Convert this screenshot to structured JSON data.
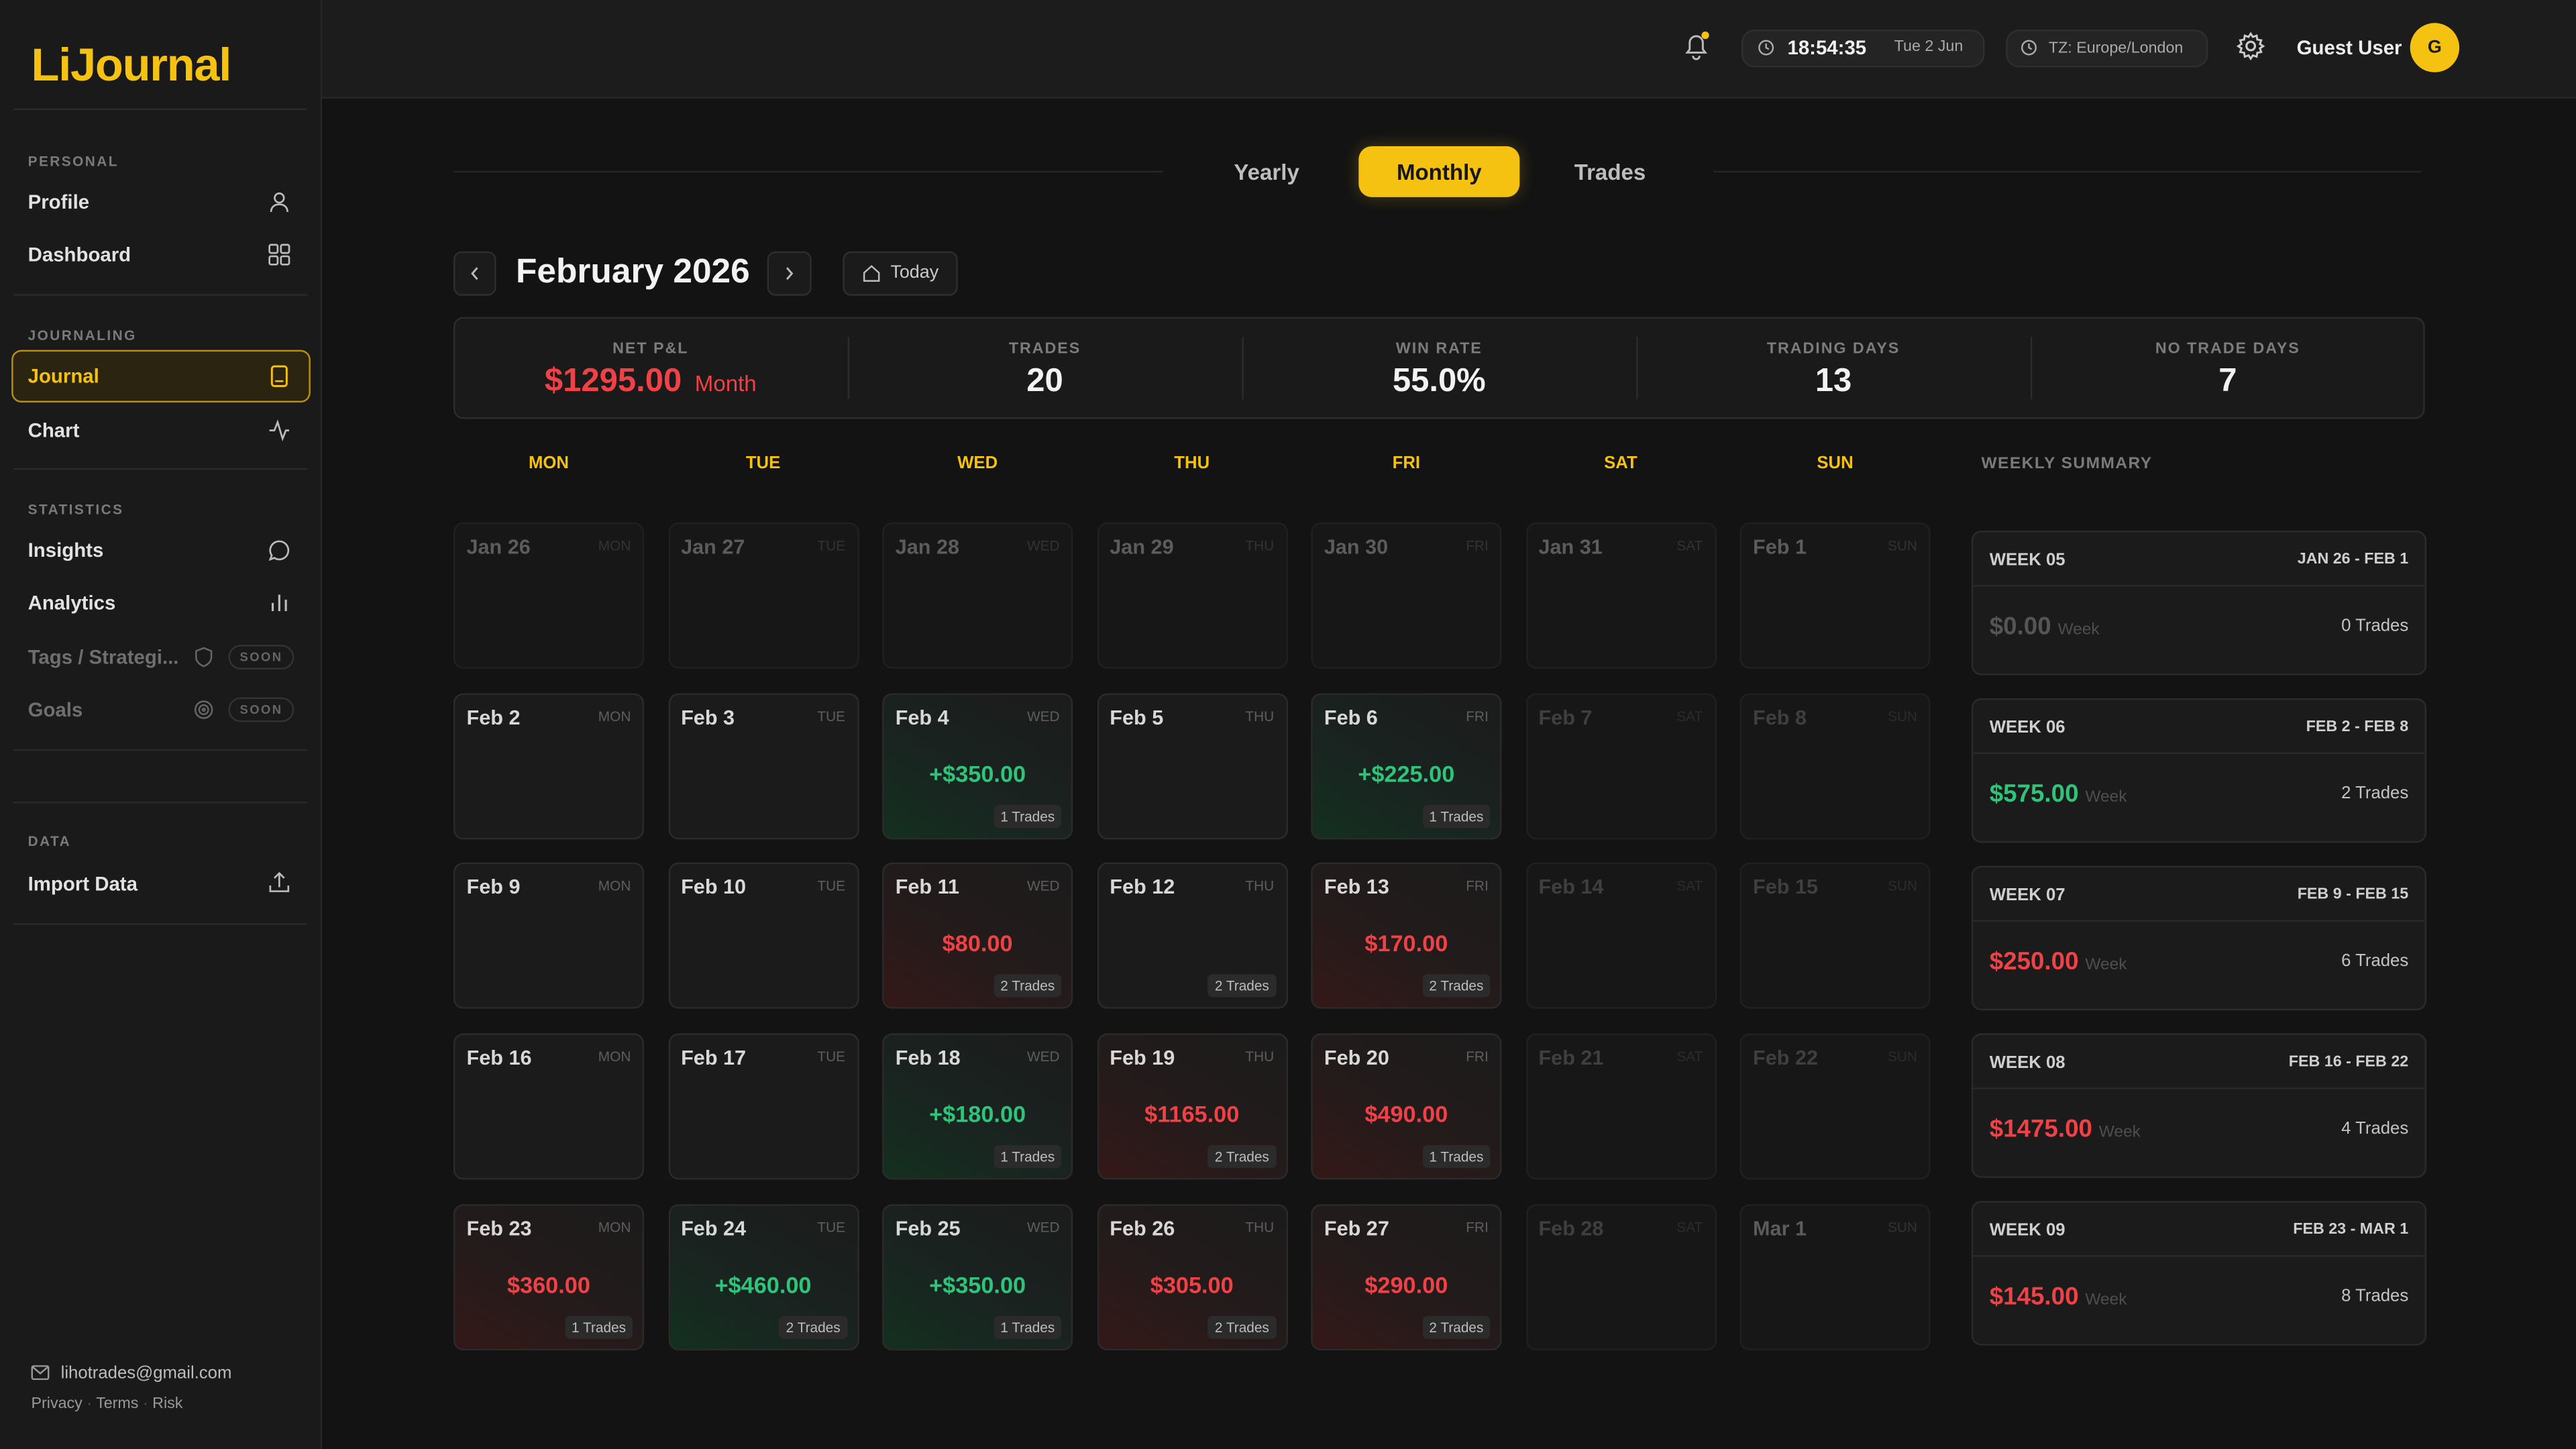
{
  "brand": "LiJournal",
  "sidebar": {
    "sections": [
      {
        "title": "PERSONAL",
        "items": [
          "Profile",
          "Dashboard"
        ]
      },
      {
        "title": "JOURNALING",
        "items": [
          "Journal",
          "Chart"
        ]
      },
      {
        "title": "STATISTICS",
        "items": [
          "Insights",
          "Analytics",
          "Tags / Strategi...",
          "Goals"
        ]
      },
      {
        "title": "DATA",
        "items": [
          "Import Data"
        ]
      }
    ],
    "soon": "SOON",
    "email": "lihotrades@gmail.com",
    "links": [
      "Privacy",
      "Terms",
      "Risk"
    ],
    "link_sep": "·"
  },
  "header": {
    "time": "18:54:35",
    "date": "Tue 2 Jun",
    "timezone": "TZ: Europe/London",
    "user": "Guest User",
    "avatar": "G"
  },
  "tabs": [
    "Yearly",
    "Monthly",
    "Trades"
  ],
  "month": "February 2026",
  "today": "Today",
  "stats": [
    {
      "label": "NET P&L",
      "value": "$1295.00",
      "unit": "Month"
    },
    {
      "label": "TRADES",
      "value": "20"
    },
    {
      "label": "WIN RATE",
      "value": "55.0%"
    },
    {
      "label": "TRADING DAYS",
      "value": "13"
    },
    {
      "label": "NO TRADE DAYS",
      "value": "7"
    }
  ],
  "weekdays": [
    "MON",
    "TUE",
    "WED",
    "THU",
    "FRI",
    "SAT",
    "SUN"
  ],
  "weekly_title": "WEEKLY SUMMARY",
  "weeks": [
    [
      {
        "date": "Jan 26",
        "dow": "MON",
        "tone": "out"
      },
      {
        "date": "Jan 27",
        "dow": "TUE",
        "tone": "out"
      },
      {
        "date": "Jan 28",
        "dow": "WED",
        "tone": "out"
      },
      {
        "date": "Jan 29",
        "dow": "THU",
        "tone": "out"
      },
      {
        "date": "Jan 30",
        "dow": "FRI",
        "tone": "out"
      },
      {
        "date": "Jan 31",
        "dow": "SAT",
        "tone": "out"
      },
      {
        "date": "Feb 1",
        "dow": "SUN",
        "tone": "out"
      }
    ],
    [
      {
        "date": "Feb 2",
        "dow": "MON",
        "tone": "neutral"
      },
      {
        "date": "Feb 3",
        "dow": "TUE",
        "tone": "neutral"
      },
      {
        "date": "Feb 4",
        "dow": "WED",
        "tone": "green",
        "pnl": "+$350.00",
        "trades": "1 Trades"
      },
      {
        "date": "Feb 5",
        "dow": "THU",
        "tone": "neutral"
      },
      {
        "date": "Feb 6",
        "dow": "FRI",
        "tone": "green",
        "pnl": "+$225.00",
        "trades": "1 Trades"
      },
      {
        "date": "Feb 7",
        "dow": "SAT",
        "tone": "weekend"
      },
      {
        "date": "Feb 8",
        "dow": "SUN",
        "tone": "weekend"
      }
    ],
    [
      {
        "date": "Feb 9",
        "dow": "MON",
        "tone": "neutral"
      },
      {
        "date": "Feb 10",
        "dow": "TUE",
        "tone": "neutral"
      },
      {
        "date": "Feb 11",
        "dow": "WED",
        "tone": "red",
        "pnl": "$80.00",
        "trades": "2 Trades"
      },
      {
        "date": "Feb 12",
        "dow": "THU",
        "tone": "neutral",
        "trades": "2 Trades"
      },
      {
        "date": "Feb 13",
        "dow": "FRI",
        "tone": "red",
        "pnl": "$170.00",
        "trades": "2 Trades"
      },
      {
        "date": "Feb 14",
        "dow": "SAT",
        "tone": "weekend"
      },
      {
        "date": "Feb 15",
        "dow": "SUN",
        "tone": "weekend"
      }
    ],
    [
      {
        "date": "Feb 16",
        "dow": "MON",
        "tone": "neutral"
      },
      {
        "date": "Feb 17",
        "dow": "TUE",
        "tone": "neutral"
      },
      {
        "date": "Feb 18",
        "dow": "WED",
        "tone": "green",
        "pnl": "+$180.00",
        "trades": "1 Trades"
      },
      {
        "date": "Feb 19",
        "dow": "THU",
        "tone": "red",
        "pnl": "$1165.00",
        "trades": "2 Trades"
      },
      {
        "date": "Feb 20",
        "dow": "FRI",
        "tone": "red",
        "pnl": "$490.00",
        "trades": "1 Trades"
      },
      {
        "date": "Feb 21",
        "dow": "SAT",
        "tone": "weekend"
      },
      {
        "date": "Feb 22",
        "dow": "SUN",
        "tone": "weekend"
      }
    ],
    [
      {
        "date": "Feb 23",
        "dow": "MON",
        "tone": "red",
        "pnl": "$360.00",
        "trades": "1 Trades"
      },
      {
        "date": "Feb 24",
        "dow": "TUE",
        "tone": "green",
        "pnl": "+$460.00",
        "trades": "2 Trades"
      },
      {
        "date": "Feb 25",
        "dow": "WED",
        "tone": "green",
        "pnl": "+$350.00",
        "trades": "1 Trades"
      },
      {
        "date": "Feb 26",
        "dow": "THU",
        "tone": "red",
        "pnl": "$305.00",
        "trades": "2 Trades"
      },
      {
        "date": "Feb 27",
        "dow": "FRI",
        "tone": "red",
        "pnl": "$290.00",
        "trades": "2 Trades"
      },
      {
        "date": "Feb 28",
        "dow": "SAT",
        "tone": "weekend"
      },
      {
        "date": "Mar 1",
        "dow": "SUN",
        "tone": "out"
      }
    ]
  ],
  "weekly": [
    {
      "week": "WEEK 05",
      "range": "JAN 26 - FEB 1",
      "value": "$0.00",
      "unit": "Week",
      "trades": "0 Trades",
      "tone": "zero"
    },
    {
      "week": "WEEK 06",
      "range": "FEB 2 - FEB 8",
      "value": "$575.00",
      "unit": "Week",
      "trades": "2 Trades",
      "tone": "green"
    },
    {
      "week": "WEEK 07",
      "range": "FEB 9 - FEB 15",
      "value": "$250.00",
      "unit": "Week",
      "trades": "6 Trades",
      "tone": "red"
    },
    {
      "week": "WEEK 08",
      "range": "FEB 16 - FEB 22",
      "value": "$1475.00",
      "unit": "Week",
      "trades": "4 Trades",
      "tone": "red"
    },
    {
      "week": "WEEK 09",
      "range": "FEB 23 - MAR 1",
      "value": "$145.00",
      "unit": "Week",
      "trades": "8 Trades",
      "tone": "red"
    }
  ]
}
